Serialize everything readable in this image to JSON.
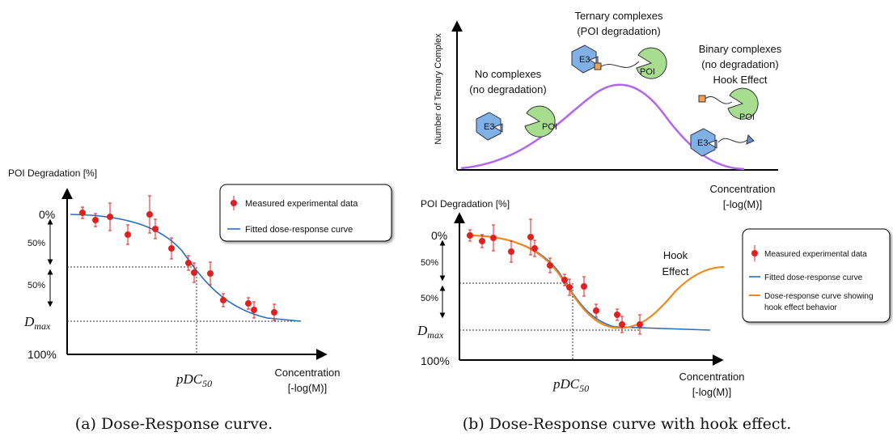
{
  "panel_a": {
    "y_label": "POI Degradation [%]",
    "y_top": "0%",
    "half_1": "50%",
    "half_2": "50%",
    "dmax": {
      "base": "D",
      "sub": "max"
    },
    "y_bottom": "100%",
    "pdc50": {
      "base": "pDC",
      "sub": "50"
    },
    "x_label": [
      "Concentration",
      "[-log(M)]"
    ],
    "legend": [
      "Measured experimental data",
      "Fitted dose-response curve"
    ],
    "caption": "(a) Dose-Response curve."
  },
  "panel_b_top": {
    "y_label": "Number of Ternary Complex",
    "no_complex": [
      "No complexes",
      "(no degradation)"
    ],
    "ternary": [
      "Ternary complexes",
      "(POI degradation)"
    ],
    "binary": [
      "Binary complexes",
      "(no degradation)",
      "Hook Effect"
    ],
    "x_label": [
      "Concentration",
      "[-log(M)]"
    ],
    "e3": "E3",
    "poi": "POI"
  },
  "panel_b": {
    "y_label": "POI Degradation [%]",
    "y_top": "0%",
    "half_1": "50%",
    "half_2": "50%",
    "dmax": {
      "base": "D",
      "sub": "max"
    },
    "y_bottom": "100%",
    "pdc50": {
      "base": "pDC",
      "sub": "50"
    },
    "x_label": [
      "Concentration",
      "[-log(M)]"
    ],
    "hook": [
      "Hook",
      "Effect"
    ],
    "legend": [
      "Measured experimental data",
      "Fitted dose-response curve",
      [
        "Dose-response curve showing",
        "hook effect behavior"
      ]
    ],
    "caption": "(b) Dose-Response curve with hook effect."
  }
}
